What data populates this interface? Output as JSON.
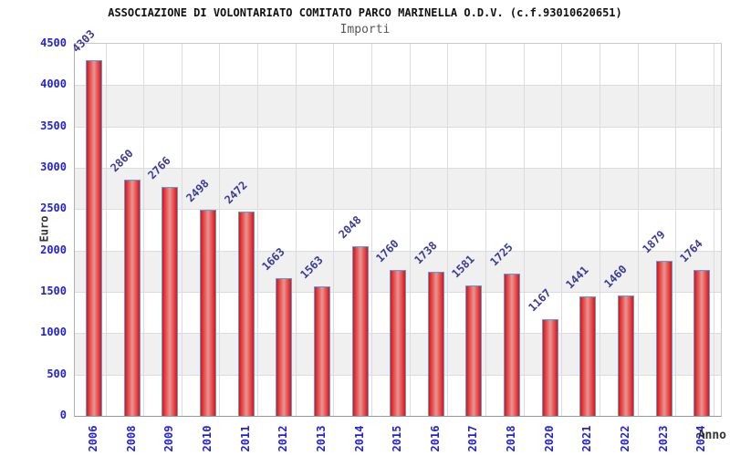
{
  "header": {
    "title": "ASSOCIAZIONE DI VOLONTARIATO COMITATO PARCO MARINELLA O.D.V. (c.f.93010620651)",
    "subtitle": "Importi"
  },
  "chart_data": {
    "type": "bar",
    "title": "ASSOCIAZIONE DI VOLONTARIATO COMITATO PARCO MARINELLA O.D.V. (c.f.93010620651)",
    "subtitle": "Importi",
    "categories": [
      "2006",
      "2008",
      "2009",
      "2010",
      "2011",
      "2012",
      "2013",
      "2014",
      "2015",
      "2016",
      "2017",
      "2018",
      "2020",
      "2021",
      "2022",
      "2023",
      "2024"
    ],
    "values": [
      4303,
      2860,
      2766,
      2498,
      2472,
      1663,
      1563,
      2048,
      1760,
      1738,
      1581,
      1725,
      1167,
      1441,
      1460,
      1879,
      1764
    ],
    "xlabel": "Anno",
    "ylabel": "Euro",
    "ylim": [
      0,
      4500
    ],
    "ytick_step": 500,
    "grid": true,
    "legend": "none",
    "bar_value_labels_rotation_deg": -45,
    "x_tick_rotation_deg": -90,
    "colors": {
      "bar_edge": "#e01212",
      "bar_center": "#e89494",
      "bar_border": "#55a0e0",
      "axis_tick_label": "#2222dd",
      "value_label": "#3a3a99",
      "band": "#f0f0f0",
      "gridline": "#dcdcdc",
      "title": "#111111",
      "subtitle": "#555555",
      "axis_title": "#333333"
    }
  }
}
